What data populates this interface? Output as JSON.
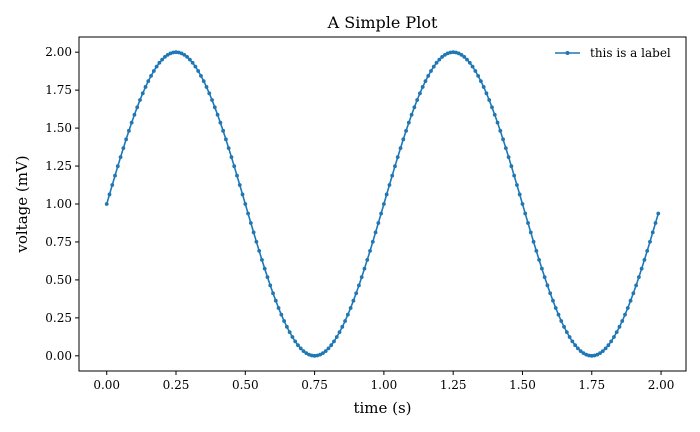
{
  "chart_data": {
    "type": "line",
    "title": "A Simple Plot",
    "xlabel": "time (s)",
    "ylabel": "voltage (mV)",
    "xlim": [
      -0.1,
      2.09
    ],
    "ylim": [
      -0.1,
      2.1
    ],
    "xticks": [
      0.0,
      0.25,
      0.5,
      0.75,
      1.0,
      1.25,
      1.5,
      1.75,
      2.0
    ],
    "xtick_labels": [
      "0.00",
      "0.25",
      "0.50",
      "0.75",
      "1.00",
      "1.25",
      "1.50",
      "1.75",
      "2.00"
    ],
    "yticks": [
      0.0,
      0.25,
      0.5,
      0.75,
      1.0,
      1.25,
      1.5,
      1.75,
      2.0
    ],
    "ytick_labels": [
      "0.00",
      "0.25",
      "0.50",
      "0.75",
      "1.00",
      "1.25",
      "1.50",
      "1.75",
      "2.00"
    ],
    "grid": false,
    "legend_position": "top-right",
    "series": [
      {
        "name": "this is a label",
        "color": "#1f77b4",
        "marker": "point",
        "x": [
          0.0,
          0.01,
          0.02,
          0.03,
          0.04,
          0.05,
          0.06,
          0.07,
          0.08,
          0.09,
          0.1,
          0.11,
          0.12,
          0.13,
          0.14,
          0.15,
          0.16,
          0.17,
          0.18,
          0.19,
          0.2,
          0.21,
          0.22,
          0.23,
          0.24,
          0.25,
          0.26,
          0.27,
          0.28,
          0.29,
          0.3,
          0.31,
          0.32,
          0.33,
          0.34,
          0.35,
          0.36,
          0.37,
          0.38,
          0.39,
          0.4,
          0.41,
          0.42,
          0.43,
          0.44,
          0.45,
          0.46,
          0.47,
          0.48,
          0.49,
          0.5,
          0.51,
          0.52,
          0.53,
          0.54,
          0.55,
          0.56,
          0.57,
          0.58,
          0.59,
          0.6,
          0.61,
          0.62,
          0.63,
          0.64,
          0.65,
          0.66,
          0.67,
          0.68,
          0.69,
          0.7,
          0.71,
          0.72,
          0.73,
          0.74,
          0.75,
          0.76,
          0.77,
          0.78,
          0.79,
          0.8,
          0.81,
          0.82,
          0.83,
          0.84,
          0.85,
          0.86,
          0.87,
          0.88,
          0.89,
          0.9,
          0.91,
          0.92,
          0.93,
          0.94,
          0.95,
          0.96,
          0.97,
          0.98,
          0.99,
          1.0,
          1.01,
          1.02,
          1.03,
          1.04,
          1.05,
          1.06,
          1.07,
          1.08,
          1.09,
          1.1,
          1.11,
          1.12,
          1.13,
          1.14,
          1.15,
          1.16,
          1.17,
          1.18,
          1.19,
          1.2,
          1.21,
          1.22,
          1.23,
          1.24,
          1.25,
          1.26,
          1.27,
          1.28,
          1.29,
          1.3,
          1.31,
          1.32,
          1.33,
          1.34,
          1.35,
          1.36,
          1.37,
          1.38,
          1.39,
          1.4,
          1.41,
          1.42,
          1.43,
          1.44,
          1.45,
          1.46,
          1.47,
          1.48,
          1.49,
          1.5,
          1.51,
          1.52,
          1.53,
          1.54,
          1.55,
          1.56,
          1.57,
          1.58,
          1.59,
          1.6,
          1.61,
          1.62,
          1.63,
          1.64,
          1.65,
          1.66,
          1.67,
          1.68,
          1.69,
          1.7,
          1.71,
          1.72,
          1.73,
          1.74,
          1.75,
          1.76,
          1.77,
          1.78,
          1.79,
          1.8,
          1.81,
          1.82,
          1.83,
          1.84,
          1.85,
          1.86,
          1.87,
          1.88,
          1.89,
          1.9,
          1.91,
          1.92,
          1.93,
          1.94,
          1.95,
          1.96,
          1.97,
          1.98,
          1.99
        ],
        "y": [
          1.0,
          1.063,
          1.125,
          1.187,
          1.249,
          1.309,
          1.368,
          1.426,
          1.482,
          1.536,
          1.588,
          1.637,
          1.685,
          1.729,
          1.771,
          1.809,
          1.844,
          1.876,
          1.905,
          1.93,
          1.951,
          1.969,
          1.982,
          1.992,
          1.998,
          2.0,
          1.998,
          1.992,
          1.982,
          1.969,
          1.951,
          1.93,
          1.905,
          1.876,
          1.844,
          1.809,
          1.771,
          1.729,
          1.685,
          1.637,
          1.588,
          1.536,
          1.482,
          1.426,
          1.368,
          1.309,
          1.249,
          1.187,
          1.125,
          1.063,
          1.0,
          0.937,
          0.875,
          0.813,
          0.751,
          0.691,
          0.632,
          0.574,
          0.518,
          0.464,
          0.412,
          0.363,
          0.315,
          0.271,
          0.229,
          0.191,
          0.156,
          0.124,
          0.095,
          0.07,
          0.049,
          0.031,
          0.018,
          0.008,
          0.002,
          0.0,
          0.002,
          0.008,
          0.018,
          0.031,
          0.049,
          0.07,
          0.095,
          0.124,
          0.156,
          0.191,
          0.229,
          0.271,
          0.315,
          0.363,
          0.412,
          0.464,
          0.518,
          0.574,
          0.632,
          0.691,
          0.751,
          0.813,
          0.875,
          0.937,
          1.0,
          1.063,
          1.125,
          1.187,
          1.249,
          1.309,
          1.368,
          1.426,
          1.482,
          1.536,
          1.588,
          1.637,
          1.685,
          1.729,
          1.771,
          1.809,
          1.844,
          1.876,
          1.905,
          1.93,
          1.951,
          1.969,
          1.982,
          1.992,
          1.998,
          2.0,
          1.998,
          1.992,
          1.982,
          1.969,
          1.951,
          1.93,
          1.905,
          1.876,
          1.844,
          1.809,
          1.771,
          1.729,
          1.685,
          1.637,
          1.588,
          1.536,
          1.482,
          1.426,
          1.368,
          1.309,
          1.249,
          1.187,
          1.125,
          1.063,
          1.0,
          0.937,
          0.875,
          0.813,
          0.751,
          0.691,
          0.632,
          0.574,
          0.518,
          0.464,
          0.412,
          0.363,
          0.315,
          0.271,
          0.229,
          0.191,
          0.156,
          0.124,
          0.095,
          0.07,
          0.049,
          0.031,
          0.018,
          0.008,
          0.002,
          0.0,
          0.002,
          0.008,
          0.018,
          0.031,
          0.049,
          0.07,
          0.095,
          0.124,
          0.156,
          0.191,
          0.229,
          0.271,
          0.315,
          0.363,
          0.412,
          0.464,
          0.518,
          0.574,
          0.632,
          0.691,
          0.751,
          0.813,
          0.875,
          0.937
        ]
      }
    ]
  }
}
